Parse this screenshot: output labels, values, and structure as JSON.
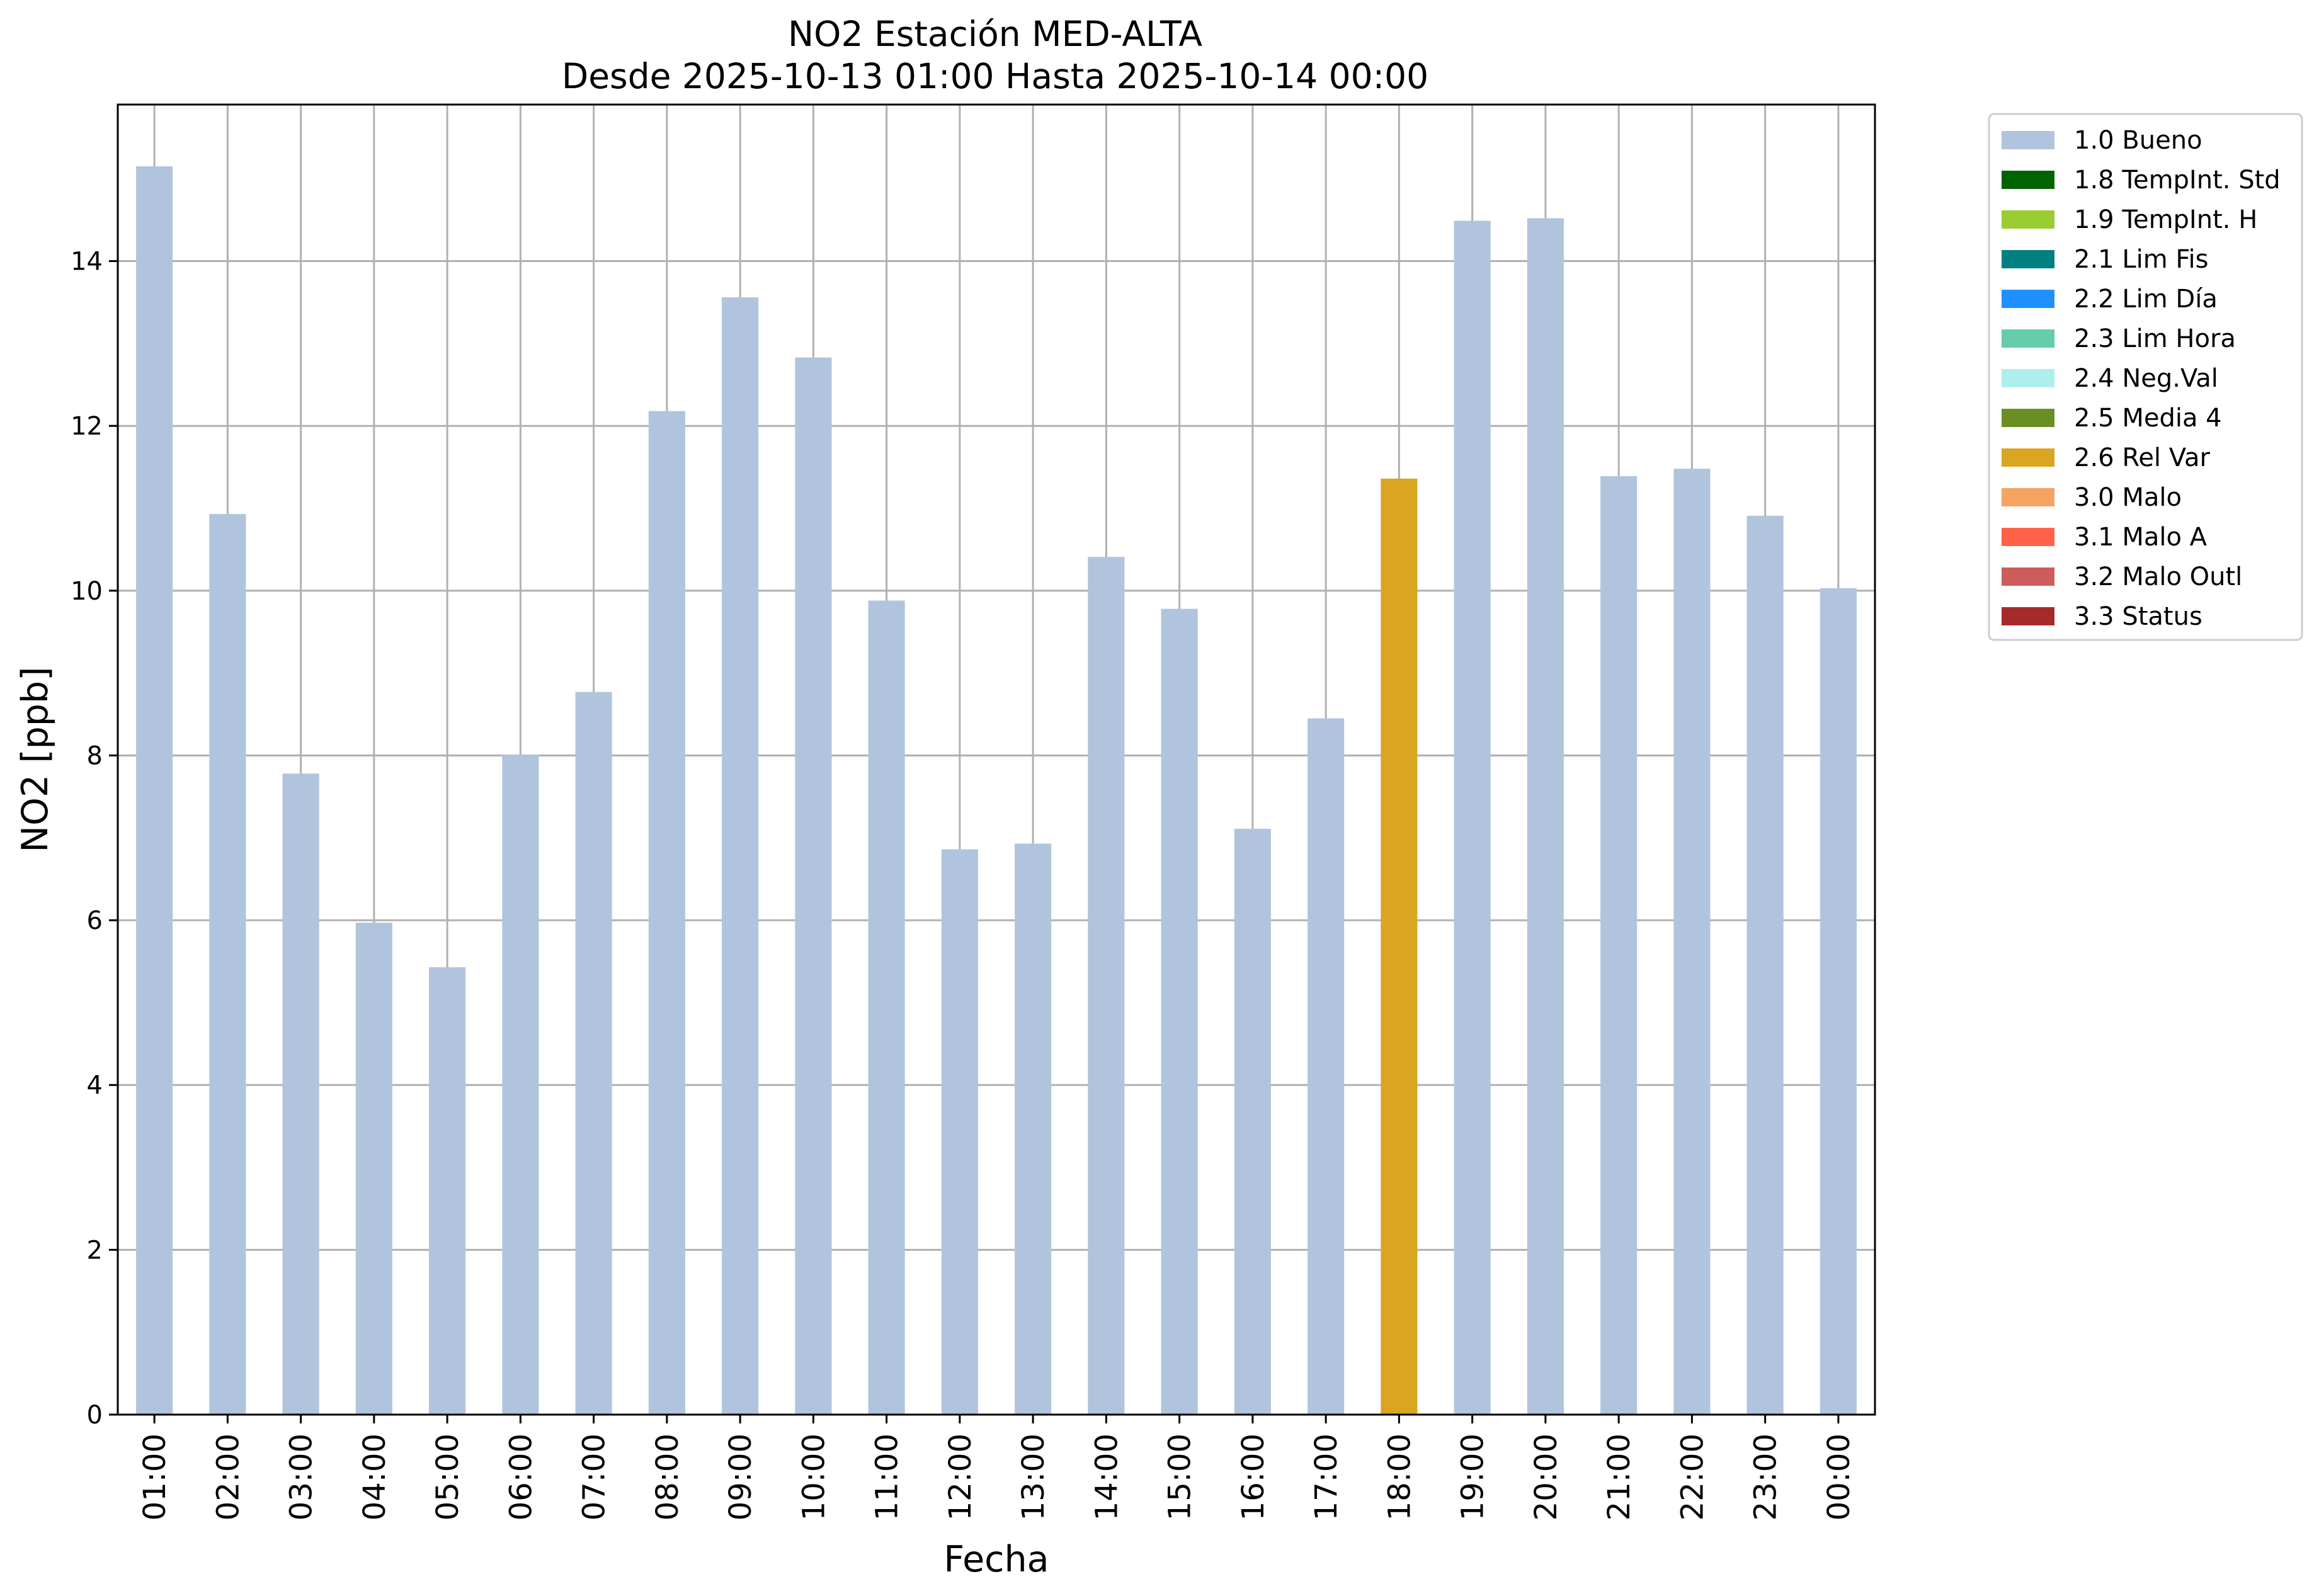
{
  "chart_data": {
    "type": "bar",
    "title": "NO2 Estación MED-ALTA",
    "subtitle": "Desde 2025-10-13 01:00 Hasta 2025-10-14 00:00",
    "xlabel": "Fecha",
    "ylabel": "NO2 [ppb]",
    "ylim": [
      0,
      15.9
    ],
    "yticks": [
      "0",
      "2",
      "4",
      "6",
      "8",
      "10",
      "12",
      "14"
    ],
    "grid": true,
    "legend_position": "outside-right",
    "categories": [
      "01:00",
      "02:00",
      "03:00",
      "04:00",
      "05:00",
      "06:00",
      "07:00",
      "08:00",
      "09:00",
      "10:00",
      "11:00",
      "12:00",
      "13:00",
      "14:00",
      "15:00",
      "16:00",
      "17:00",
      "18:00",
      "19:00",
      "20:00",
      "21:00",
      "22:00",
      "23:00",
      "00:00"
    ],
    "values": [
      15.15,
      10.93,
      7.78,
      5.97,
      5.43,
      8.01,
      8.77,
      12.18,
      13.56,
      12.83,
      9.88,
      6.86,
      6.93,
      10.41,
      9.78,
      7.11,
      8.45,
      11.36,
      14.49,
      14.52,
      11.39,
      11.48,
      10.91,
      10.03
    ],
    "bar_flags": [
      "1.0",
      "1.0",
      "1.0",
      "1.0",
      "1.0",
      "1.0",
      "1.0",
      "1.0",
      "1.0",
      "1.0",
      "1.0",
      "1.0",
      "1.0",
      "1.0",
      "1.0",
      "1.0",
      "1.0",
      "2.6",
      "1.0",
      "1.0",
      "1.0",
      "1.0",
      "1.0",
      "1.0"
    ],
    "legend": [
      {
        "code": "1.0",
        "label": "1.0 Bueno",
        "color": "#b0c4de"
      },
      {
        "code": "1.8",
        "label": "1.8 TempInt. Std",
        "color": "#006400"
      },
      {
        "code": "1.9",
        "label": "1.9 TempInt. H",
        "color": "#9acd32"
      },
      {
        "code": "2.1",
        "label": "2.1 Lim Fis",
        "color": "#008080"
      },
      {
        "code": "2.2",
        "label": "2.2 Lim Día",
        "color": "#1e90ff"
      },
      {
        "code": "2.3",
        "label": "2.3 Lim Hora",
        "color": "#66cdaa"
      },
      {
        "code": "2.4",
        "label": "2.4 Neg.Val",
        "color": "#afeeee"
      },
      {
        "code": "2.5",
        "label": "2.5 Media 4",
        "color": "#6b8e23"
      },
      {
        "code": "2.6",
        "label": "2.6 Rel Var",
        "color": "#daa520"
      },
      {
        "code": "3.0",
        "label": "3.0 Malo",
        "color": "#f4a460"
      },
      {
        "code": "3.1",
        "label": "3.1 Malo A",
        "color": "#ff6347"
      },
      {
        "code": "3.2",
        "label": "3.2 Malo Outl",
        "color": "#cd5c5c"
      },
      {
        "code": "3.3",
        "label": "3.3 Status",
        "color": "#a52a2a"
      }
    ],
    "colors": {
      "grid": "#b0b0b0",
      "axes": "#000000"
    }
  }
}
